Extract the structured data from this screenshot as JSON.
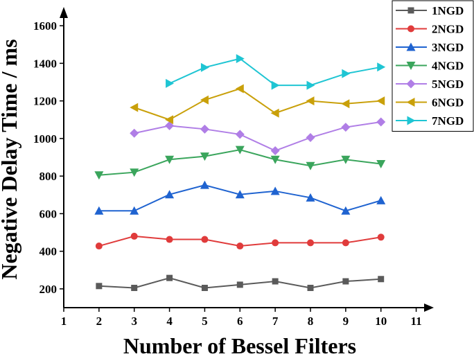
{
  "chart_data": {
    "type": "line",
    "x_label": "Number of Bessel Filters",
    "y_label": "Negative Delay Time / ms",
    "x": [
      2,
      3,
      4,
      5,
      6,
      7,
      8,
      9,
      10
    ],
    "series": [
      {
        "name": "1NGD",
        "color": "#5a5a5a",
        "marker": "square",
        "values": [
          215,
          205,
          258,
          205,
          222,
          240,
          205,
          240,
          252
        ]
      },
      {
        "name": "2NGD",
        "color": "#e03b3b",
        "marker": "circle",
        "values": [
          428,
          480,
          463,
          463,
          428,
          445,
          445,
          445,
          475
        ]
      },
      {
        "name": "3NGD",
        "color": "#1f63d0",
        "marker": "triangle-up",
        "values": [
          615,
          615,
          702,
          752,
          702,
          720,
          685,
          615,
          670
        ]
      },
      {
        "name": "4NGD",
        "color": "#3aa55c",
        "marker": "triangle-down",
        "values": [
          805,
          820,
          888,
          905,
          940,
          888,
          855,
          888,
          865
        ]
      },
      {
        "name": "5NGD",
        "color": "#b07ee6",
        "marker": "diamond",
        "values": [
          null,
          1028,
          1068,
          1050,
          1022,
          935,
          1005,
          1060,
          1088
        ]
      },
      {
        "name": "6NGD",
        "color": "#c9a00a",
        "marker": "triangle-left",
        "values": [
          null,
          1165,
          1100,
          1205,
          1265,
          1135,
          1200,
          1185,
          1200
        ]
      },
      {
        "name": "7NGD",
        "color": "#1fc5d3",
        "marker": "triangle-right",
        "values": [
          null,
          null,
          1293,
          1378,
          1425,
          1283,
          1283,
          1345,
          1380
        ]
      }
    ],
    "xlim": [
      1,
      11.5
    ],
    "ylim": [
      100,
      1700
    ],
    "xticks": [
      1,
      2,
      3,
      4,
      5,
      6,
      7,
      8,
      9,
      10,
      11
    ],
    "yticks": [
      200,
      400,
      600,
      800,
      1000,
      1200,
      1400,
      1600
    ],
    "legend": "top-right"
  }
}
